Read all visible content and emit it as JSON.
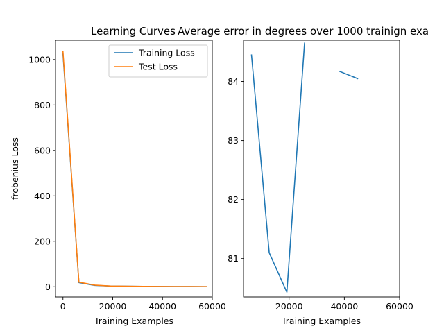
{
  "chart_data": [
    {
      "type": "line",
      "title": "Learning Curves",
      "xlabel": "Training Examples",
      "ylabel": "frobenius Loss",
      "xlim": [
        -3000,
        60000
      ],
      "ylim": [
        -45,
        1085
      ],
      "xticks": [
        0,
        20000,
        40000,
        60000
      ],
      "xtick_labels": [
        "0",
        "20000",
        "40000",
        "60000"
      ],
      "yticks": [
        0,
        200,
        400,
        600,
        800,
        1000
      ],
      "ytick_labels": [
        "0",
        "200",
        "400",
        "600",
        "800",
        "1000"
      ],
      "legend": "top-right",
      "grid": false,
      "series": [
        {
          "name": "Training Loss",
          "color": "#1f77b4",
          "x": [
            0,
            6400,
            12800,
            19200,
            25600,
            32000,
            38400,
            44800,
            51200,
            57600
          ],
          "y": [
            1025,
            18,
            6,
            3,
            2,
            1.5,
            1,
            0.8,
            0.5,
            0.3
          ]
        },
        {
          "name": "Test Loss",
          "color": "#ff7f0e",
          "x": [
            0,
            6400,
            12800,
            19200,
            25600,
            32000,
            38400,
            44800,
            51200,
            57600
          ],
          "y": [
            1035,
            20,
            7,
            3,
            2,
            1.5,
            1,
            0.8,
            0.5,
            0.3
          ]
        }
      ]
    },
    {
      "type": "line",
      "title": "Average error in degrees over 1000 trainign exa",
      "xlabel": "Training Examples",
      "ylabel": "",
      "xlim": [
        3500,
        60000
      ],
      "ylim": [
        80.35,
        84.7
      ],
      "xticks": [
        20000,
        40000,
        60000
      ],
      "xtick_labels": [
        "20000",
        "40000",
        "60000"
      ],
      "yticks": [
        81,
        82,
        83,
        84
      ],
      "ytick_labels": [
        "81",
        "82",
        "83",
        "84"
      ],
      "grid": false,
      "series": [
        {
          "color": "#1f77b4",
          "x": [
            6400,
            12800,
            19200,
            25600,
            null,
            38400,
            44800
          ],
          "y": [
            84.45,
            81.1,
            80.43,
            84.65,
            null,
            84.17,
            84.05
          ]
        }
      ]
    }
  ]
}
